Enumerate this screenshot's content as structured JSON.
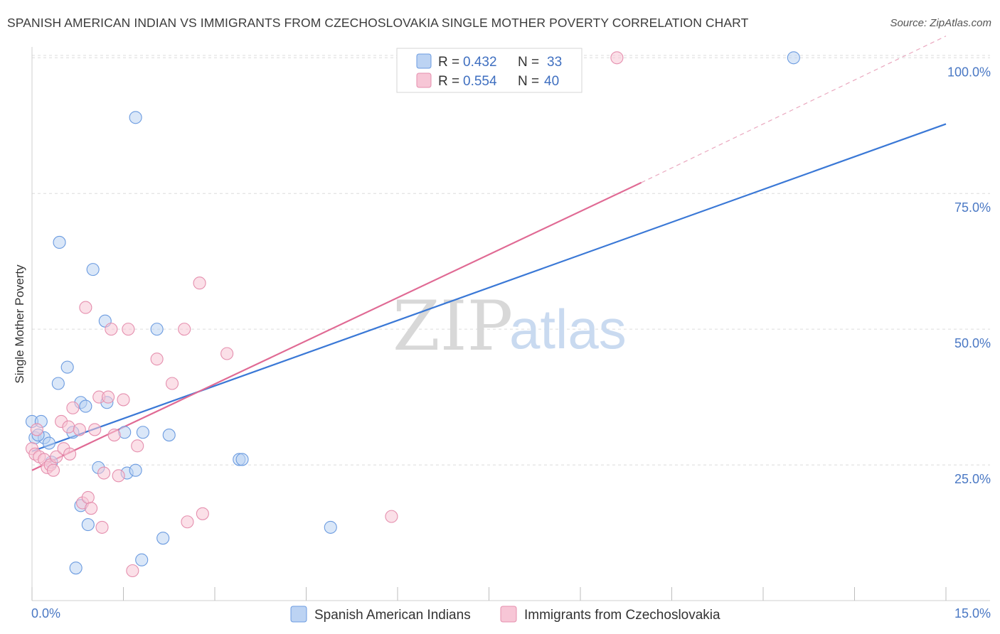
{
  "header": {
    "title": "SPANISH AMERICAN INDIAN VS IMMIGRANTS FROM CZECHOSLOVAKIA SINGLE MOTHER POVERTY CORRELATION CHART",
    "source": "Source: ZipAtlas.com"
  },
  "watermark": {
    "zip": "ZIP",
    "atlas": "atlas"
  },
  "chart_data": {
    "type": "scatter",
    "title": "SPANISH AMERICAN INDIAN VS IMMIGRANTS FROM CZECHOSLOVAKIA SINGLE MOTHER POVERTY CORRELATION CHART",
    "xlabel": "",
    "ylabel": "Single Mother Poverty",
    "xlim": [
      0,
      15
    ],
    "ylim": [
      0,
      102
    ],
    "x_tick_labels": [
      {
        "value": 0,
        "label": "0.0%"
      },
      {
        "value": 15,
        "label": "15.0%"
      }
    ],
    "y_tick_labels": [
      {
        "value": 25,
        "label": "25.0%"
      },
      {
        "value": 50,
        "label": "50.0%"
      },
      {
        "value": 75,
        "label": "75.0%"
      },
      {
        "value": 100,
        "label": "100.0%"
      }
    ],
    "legend_position": "bottom",
    "series": [
      {
        "name": "Spanish American Indians",
        "color": "#6b9be0",
        "fill": "#bcd3f3",
        "stats": {
          "r_label": "R =",
          "r": "0.432",
          "n_label": "N =",
          "n": "33"
        },
        "trend": {
          "x": [
            0,
            15
          ],
          "y": [
            27.5,
            87.8
          ],
          "dashed_extension": false
        },
        "points": [
          [
            0.0,
            33.0
          ],
          [
            0.05,
            30.0
          ],
          [
            0.15,
            33.0
          ],
          [
            0.2,
            30.0
          ],
          [
            0.28,
            29.0
          ],
          [
            0.45,
            66.0
          ],
          [
            0.58,
            43.0
          ],
          [
            0.43,
            40.0
          ],
          [
            0.8,
            36.5
          ],
          [
            0.67,
            31.0
          ],
          [
            0.88,
            35.8
          ],
          [
            0.8,
            17.5
          ],
          [
            1.0,
            61.0
          ],
          [
            1.2,
            51.5
          ],
          [
            1.23,
            36.5
          ],
          [
            1.09,
            24.5
          ],
          [
            1.52,
            31.0
          ],
          [
            1.56,
            23.5
          ],
          [
            1.7,
            24.0
          ],
          [
            1.82,
            31.0
          ],
          [
            2.05,
            50.0
          ],
          [
            2.25,
            30.5
          ],
          [
            0.92,
            14.0
          ],
          [
            1.7,
            89.0
          ],
          [
            0.72,
            6.0
          ],
          [
            1.8,
            7.5
          ],
          [
            2.15,
            11.5
          ],
          [
            3.4,
            26.0
          ],
          [
            3.45,
            26.0
          ],
          [
            4.9,
            13.5
          ],
          [
            12.5,
            100.0
          ],
          [
            0.1,
            30.5
          ],
          [
            0.32,
            25.5
          ]
        ]
      },
      {
        "name": "Immigrants from Czechoslovakia",
        "color": "#e58fae",
        "fill": "#f7c6d6",
        "stats": {
          "r_label": "R =",
          "r": "0.554",
          "n_label": "N =",
          "n": "40"
        },
        "trend": {
          "x": [
            0,
            10.0
          ],
          "y": [
            24.0,
            77.0
          ],
          "dashed_extension": true,
          "dash_to": [
            15,
            104.0
          ]
        },
        "points": [
          [
            0.0,
            28.0
          ],
          [
            0.05,
            27.0
          ],
          [
            0.08,
            31.5
          ],
          [
            0.12,
            26.5
          ],
          [
            0.2,
            26.0
          ],
          [
            0.25,
            24.5
          ],
          [
            0.3,
            25.0
          ],
          [
            0.35,
            24.0
          ],
          [
            0.4,
            26.5
          ],
          [
            0.48,
            33.0
          ],
          [
            0.52,
            28.0
          ],
          [
            0.6,
            32.0
          ],
          [
            0.62,
            27.0
          ],
          [
            0.67,
            35.5
          ],
          [
            0.78,
            31.5
          ],
          [
            0.83,
            18.0
          ],
          [
            0.88,
            54.0
          ],
          [
            0.92,
            19.0
          ],
          [
            0.97,
            17.0
          ],
          [
            1.03,
            31.5
          ],
          [
            1.1,
            37.5
          ],
          [
            1.15,
            13.5
          ],
          [
            1.18,
            23.5
          ],
          [
            1.25,
            37.5
          ],
          [
            1.3,
            50.0
          ],
          [
            1.35,
            30.5
          ],
          [
            1.42,
            23.0
          ],
          [
            1.5,
            37.0
          ],
          [
            1.58,
            50.0
          ],
          [
            1.65,
            5.5
          ],
          [
            1.73,
            28.5
          ],
          [
            2.05,
            44.5
          ],
          [
            2.3,
            40.0
          ],
          [
            2.5,
            50.0
          ],
          [
            2.55,
            14.5
          ],
          [
            2.75,
            58.5
          ],
          [
            2.8,
            16.0
          ],
          [
            3.2,
            45.5
          ],
          [
            5.9,
            15.5
          ],
          [
            9.6,
            100.0
          ]
        ]
      }
    ]
  }
}
